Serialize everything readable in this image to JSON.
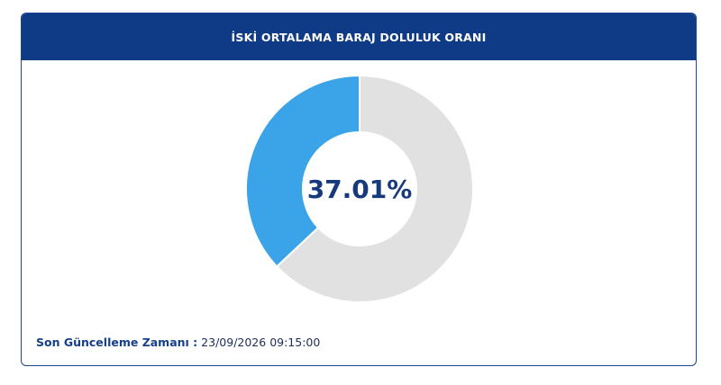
{
  "chart_data": {
    "type": "donut",
    "title": "İSKİ ORTALAMA BARAJ DOLULUK ORANI",
    "values": [
      37.01,
      62.99
    ],
    "value_labels": [
      "37.01%",
      null
    ],
    "colors": [
      "#3ba3e8",
      "#e1e1e1"
    ]
  },
  "footer": {
    "label": "Son Güncelleme Zamanı :",
    "value": "23/09/2026 09:15:00"
  }
}
